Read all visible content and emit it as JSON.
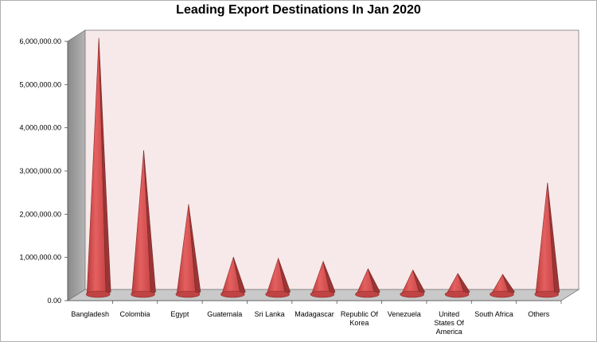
{
  "chart_data": {
    "type": "bar",
    "title": "Leading Export Destinations In Jan 2020",
    "xlabel": "",
    "ylabel": "",
    "ylim": [
      0,
      6000000
    ],
    "y_ticks": [
      "0.00",
      "1,000,000.00",
      "2,000,000.00",
      "3,000,000.00",
      "4,000,000.00",
      "5,000,000.00",
      "6,000,000.00"
    ],
    "categories": [
      [
        "Bangladesh"
      ],
      [
        "Colombia"
      ],
      [
        "Egypt"
      ],
      [
        "Guatemala"
      ],
      [
        "Sri Lanka"
      ],
      [
        "Madagascar"
      ],
      [
        "Republic Of",
        "Korea"
      ],
      [
        "Venezuela"
      ],
      [
        "United",
        "States Of",
        "America"
      ],
      [
        "South Africa"
      ],
      [
        "Others"
      ]
    ],
    "values": [
      5950000,
      3350000,
      2100000,
      880000,
      850000,
      780000,
      610000,
      580000,
      500000,
      480000,
      2600000
    ],
    "bar_shape": "cone",
    "bar_color": "#d94a4a",
    "wall_color": "#f7e9e9",
    "grid": false,
    "legend": "none"
  }
}
